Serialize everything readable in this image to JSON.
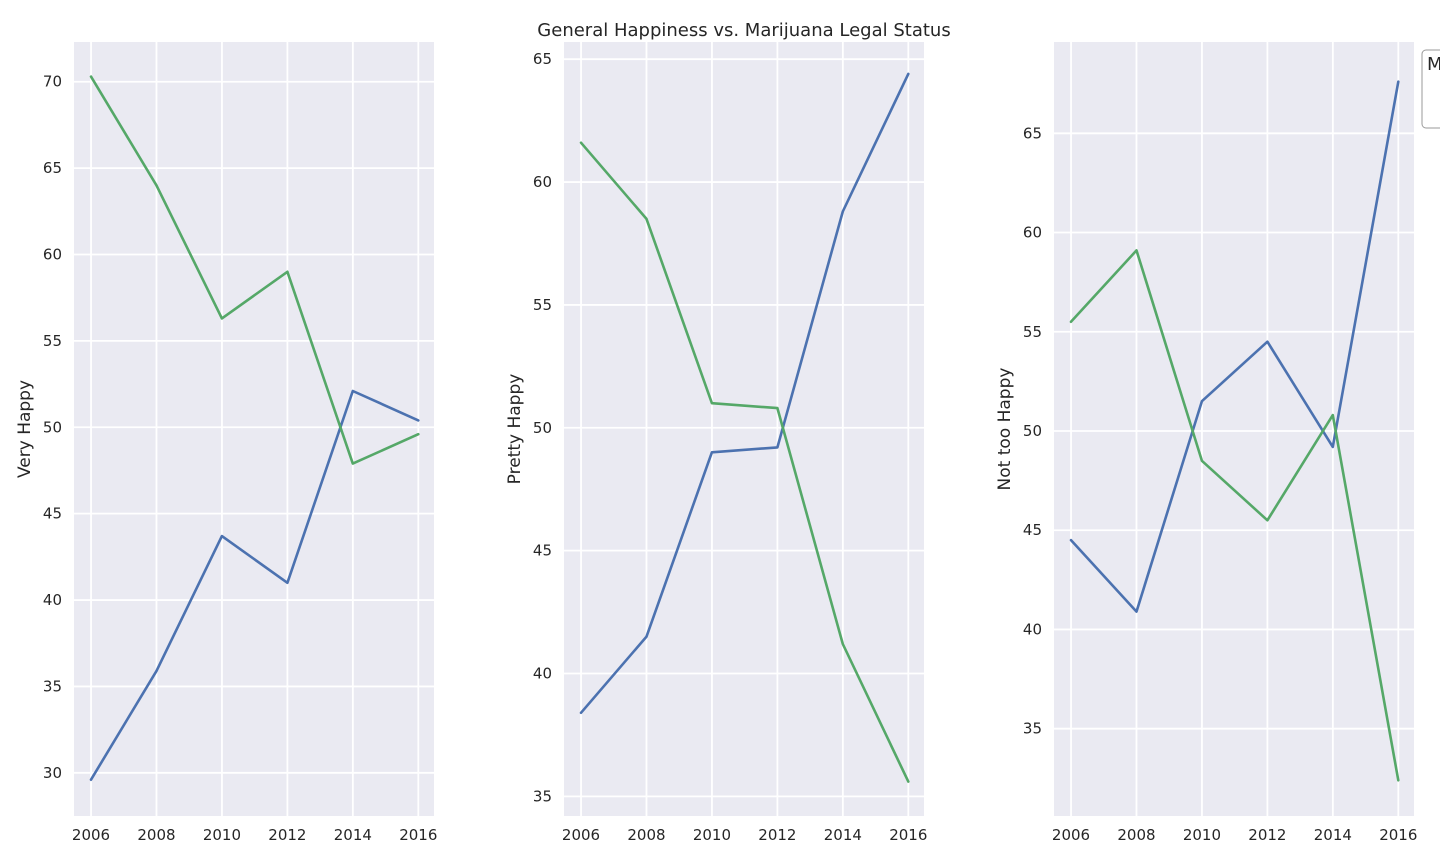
{
  "figure": {
    "suptitle": "General Happiness vs. Marijuana Legal Status",
    "legend_fragment": "M"
  },
  "colors": {
    "background": "#ffffff",
    "axes_face": "#eaeaf2",
    "grid": "#ffffff",
    "series_blue": "#4c72b0",
    "series_green": "#55a868"
  },
  "chart_data": [
    {
      "type": "line",
      "ylabel": "Very Happy",
      "x": [
        2006,
        2008,
        2010,
        2012,
        2014,
        2016
      ],
      "xticks": [
        2006,
        2008,
        2010,
        2012,
        2014,
        2016
      ],
      "yticks": [
        30,
        35,
        40,
        45,
        50,
        55,
        60,
        65,
        70
      ],
      "xlim": [
        2005.48,
        2016.48
      ],
      "ylim": [
        27.5,
        72.3
      ],
      "grid": true,
      "series": [
        {
          "color": "#4c72b0",
          "values": [
            29.6,
            35.9,
            43.7,
            41.0,
            52.1,
            50.4
          ]
        },
        {
          "color": "#55a868",
          "values": [
            70.3,
            64.0,
            56.3,
            59.0,
            47.9,
            49.6
          ]
        }
      ]
    },
    {
      "type": "line",
      "ylabel": "Pretty Happy",
      "x": [
        2006,
        2008,
        2010,
        2012,
        2014,
        2016
      ],
      "xticks": [
        2006,
        2008,
        2010,
        2012,
        2014,
        2016
      ],
      "yticks": [
        35,
        40,
        45,
        50,
        55,
        60,
        65
      ],
      "xlim": [
        2005.48,
        2016.48
      ],
      "ylim": [
        34.2,
        65.7
      ],
      "grid": true,
      "series": [
        {
          "color": "#4c72b0",
          "values": [
            38.4,
            41.5,
            49.0,
            49.2,
            58.8,
            64.4
          ]
        },
        {
          "color": "#55a868",
          "values": [
            61.6,
            58.5,
            51.0,
            50.8,
            41.2,
            35.6
          ]
        }
      ]
    },
    {
      "type": "line",
      "ylabel": "Not too Happy",
      "x": [
        2006,
        2008,
        2010,
        2012,
        2014,
        2016
      ],
      "xticks": [
        2006,
        2008,
        2010,
        2012,
        2014,
        2016
      ],
      "yticks": [
        35,
        40,
        45,
        50,
        55,
        60,
        65
      ],
      "xlim": [
        2005.48,
        2016.48
      ],
      "ylim": [
        30.6,
        69.6
      ],
      "grid": true,
      "series": [
        {
          "color": "#4c72b0",
          "values": [
            44.5,
            40.9,
            51.5,
            54.5,
            49.2,
            67.6
          ]
        },
        {
          "color": "#55a868",
          "values": [
            55.5,
            59.1,
            48.5,
            45.5,
            50.8,
            32.4
          ]
        }
      ]
    }
  ]
}
